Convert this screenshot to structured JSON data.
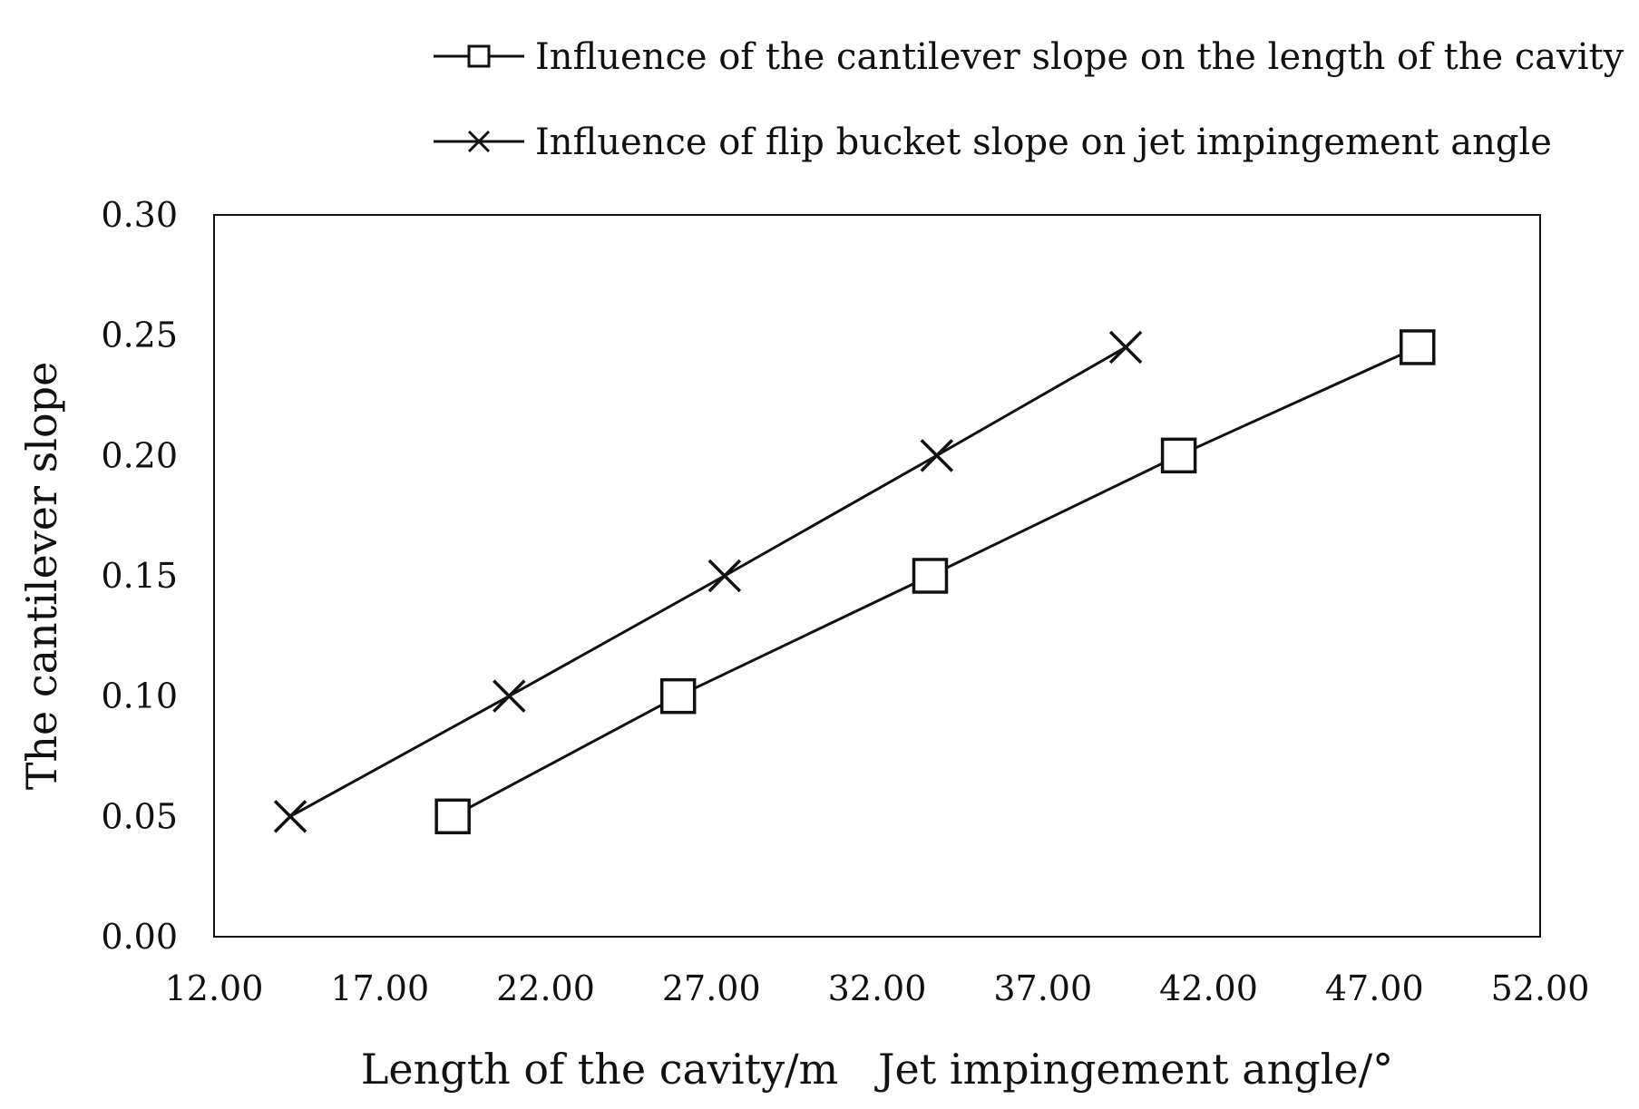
{
  "chart_data": {
    "type": "line",
    "title": "",
    "xlabel": "Length of the cavity/m   Jet impingement angle/°",
    "ylabel": "The cantilever slope",
    "xlim": [
      12,
      52
    ],
    "ylim": [
      0,
      0.3
    ],
    "xticks": [
      "12.00",
      "17.00",
      "22.00",
      "27.00",
      "32.00",
      "37.00",
      "42.00",
      "47.00",
      "52.00"
    ],
    "yticks": [
      "0.00",
      "0.05",
      "0.10",
      "0.15",
      "0.20",
      "0.25",
      "0.30"
    ],
    "grid": false,
    "legend_position": "top",
    "series": [
      {
        "name": "Influence of the cantilever slope on the length of the cavity",
        "marker": "square",
        "x": [
          19.2,
          26.0,
          33.6,
          41.1,
          48.3
        ],
        "y": [
          0.05,
          0.1,
          0.15,
          0.2,
          0.245
        ]
      },
      {
        "name": "Influence of flip bucket slope on jet impingement angle",
        "marker": "x",
        "x": [
          14.3,
          20.9,
          27.4,
          33.8,
          39.5
        ],
        "y": [
          0.05,
          0.1,
          0.15,
          0.2,
          0.245
        ]
      }
    ],
    "colors": {
      "line": "#111111",
      "frame": "#111111"
    }
  }
}
